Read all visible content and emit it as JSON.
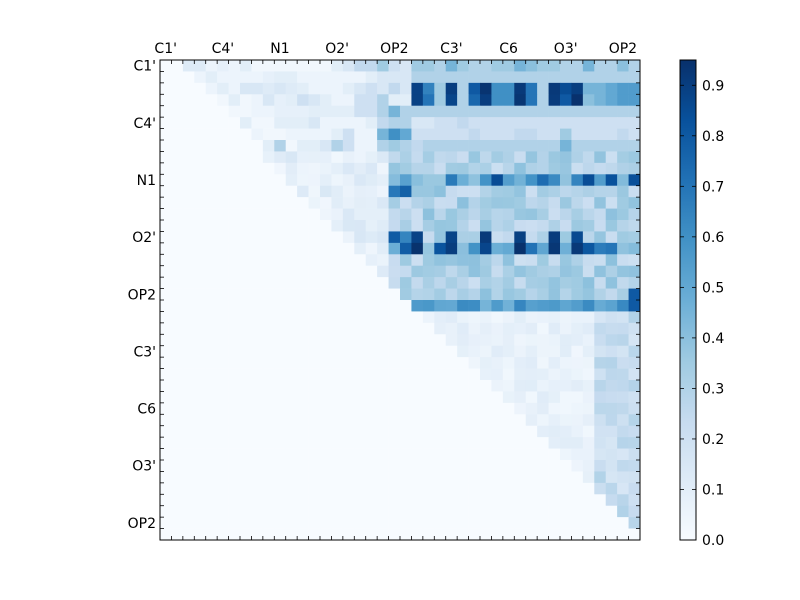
{
  "chart_data": {
    "type": "heatmap",
    "grid_size": 42,
    "x_tick_labels": [
      "C1'",
      "C4'",
      "N1",
      "O2'",
      "OP2",
      "C3'",
      "C6",
      "O3'",
      "OP2"
    ],
    "y_tick_labels": [
      "C1'",
      "C4'",
      "N1",
      "O2'",
      "OP2",
      "C3'",
      "C6",
      "O3'",
      "OP2"
    ],
    "x_tick_positions": [
      0.5,
      5.5,
      10.5,
      15.5,
      20.5,
      25.5,
      30.5,
      35.5,
      40.5
    ],
    "y_tick_positions": [
      0.5,
      5.5,
      10.5,
      15.5,
      20.5,
      25.5,
      30.5,
      35.5,
      40.5
    ],
    "colorbar": {
      "min": 0.0,
      "max": 0.95,
      "ticks": [
        0.0,
        0.1,
        0.2,
        0.3,
        0.4,
        0.5,
        0.6,
        0.7,
        0.8,
        0.9
      ],
      "tick_labels": [
        "0.0",
        "0.1",
        "0.2",
        "0.3",
        "0.4",
        "0.5",
        "0.6",
        "0.7",
        "0.8",
        "0.9"
      ],
      "colormap": "Blues"
    },
    "values_note_rows": "Upper-triangular matrix; values read approximately from colors",
    "cell_values": [
      {
        "rows": [
          0
        ],
        "pattern": [
          0,
          0,
          0.12,
          0.12,
          0.05,
          0.08,
          0.05,
          0.1,
          0.03,
          0.03,
          0.03,
          0.03,
          0.03,
          0.03,
          0.03,
          0.1,
          0.15,
          0.25,
          0.25,
          0.35,
          0.2,
          0.15,
          0.35,
          0.35,
          0.3,
          0.45,
          0.35,
          0.3,
          0.3,
          0.35,
          0.35,
          0.45,
          0.4,
          0.35,
          0.35,
          0.3,
          0.3,
          0.45,
          0.3,
          0.3,
          0.4,
          0.3
        ]
      },
      {
        "rows": [
          1
        ],
        "pattern": [
          0,
          0,
          0,
          0.05,
          0.1,
          0.05,
          0.05,
          0.05,
          0.05,
          0.08,
          0.1,
          0.1,
          0.05,
          0.05,
          0.05,
          0.05,
          0.05,
          0.05,
          0.1,
          0.15,
          0.15,
          0.15,
          0.3,
          0.3,
          0.3,
          0.3,
          0.3,
          0.3,
          0.3,
          0.3,
          0.3,
          0.3,
          0.3,
          0.3,
          0.3,
          0.3,
          0.3,
          0.3,
          0.3,
          0.3,
          0.3,
          0.3
        ]
      },
      {
        "rows": [
          2
        ],
        "pattern": [
          0,
          0,
          0,
          0,
          0.05,
          0.1,
          0.05,
          0.15,
          0.15,
          0.12,
          0.15,
          0.12,
          0.1,
          0.05,
          0.05,
          0.05,
          0.1,
          0.15,
          0.2,
          0.15,
          0.25,
          0.15,
          0.55,
          0.65,
          0.35,
          0.9,
          0.3,
          0.8,
          0.3,
          0.6,
          0.6,
          0.8,
          0.7,
          0.3,
          0.3,
          0.85,
          0.45,
          0.45,
          0.45,
          0.5,
          0.55,
          0.55
        ]
      },
      {
        "rows": [
          3
        ],
        "pattern": [
          0,
          0,
          0,
          0,
          0,
          0.03,
          0.1,
          0.03,
          0.05,
          0.15,
          0.08,
          0.1,
          0.2,
          0.15,
          0.1,
          0.05,
          0.05,
          0.2,
          0.2,
          0.3,
          0.1,
          0.1,
          0.55,
          0.7,
          0.35,
          0.85,
          0.3,
          0.75,
          0.3,
          0.6,
          0.6,
          0.75,
          0.7,
          0.3,
          0.3,
          0.8,
          0.4,
          0.4,
          0.45,
          0.5,
          0.55,
          0.55
        ]
      },
      {
        "rows": [
          4
        ],
        "pattern": [
          0,
          0,
          0,
          0,
          0,
          0,
          0.03,
          0.03,
          0.05,
          0.05,
          0.08,
          0.08,
          0.08,
          0.1,
          0.1,
          0.1,
          0.1,
          0.2,
          0.2,
          0.3,
          0.45,
          0.3,
          0.3,
          0.3,
          0.3,
          0.3,
          0.3,
          0.3,
          0.3,
          0.3,
          0.3,
          0.3,
          0.3,
          0.3,
          0.3,
          0.3,
          0.3,
          0.3,
          0.3,
          0.3,
          0.3,
          0.3
        ]
      },
      {
        "rows": [
          5
        ],
        "pattern": [
          0,
          0,
          0,
          0,
          0,
          0,
          0,
          0.1,
          0.03,
          0.03,
          0.1,
          0.1,
          0.1,
          0.15,
          0.05,
          0.05,
          0.05,
          0.05,
          0.1,
          0.25,
          0.3,
          0.3,
          0.15,
          0.15,
          0.2,
          0.2,
          0.25,
          0.2,
          0.2,
          0.2,
          0.2,
          0.2,
          0.2,
          0.2,
          0.2,
          0.2,
          0.2,
          0.2,
          0.2,
          0.2,
          0.2,
          0.2
        ]
      },
      {
        "rows": [
          6
        ],
        "pattern": [
          0,
          0,
          0,
          0,
          0,
          0,
          0,
          0,
          0.05,
          0.03,
          0.03,
          0.05,
          0.05,
          0.05,
          0.05,
          0.1,
          0.2,
          0.05,
          0.05,
          0.45,
          0.6,
          0.5,
          0.2,
          0.2,
          0.2,
          0.2,
          0.2,
          0.25,
          0.2,
          0.2,
          0.2,
          0.25,
          0.25,
          0.2,
          0.2,
          0.35,
          0.2,
          0.2,
          0.2,
          0.2,
          0.25,
          0.2
        ]
      },
      {
        "rows": [
          7
        ],
        "pattern": [
          0,
          0,
          0,
          0,
          0,
          0,
          0,
          0,
          0,
          0.1,
          0.3,
          0.03,
          0.1,
          0.1,
          0.15,
          0.3,
          0.2,
          0.05,
          0.05,
          0.3,
          0.35,
          0.3,
          0.25,
          0.3,
          0.3,
          0.3,
          0.3,
          0.3,
          0.3,
          0.3,
          0.3,
          0.3,
          0.3,
          0.3,
          0.3,
          0.45,
          0.3,
          0.3,
          0.3,
          0.3,
          0.3,
          0.3
        ]
      }
    ]
  }
}
